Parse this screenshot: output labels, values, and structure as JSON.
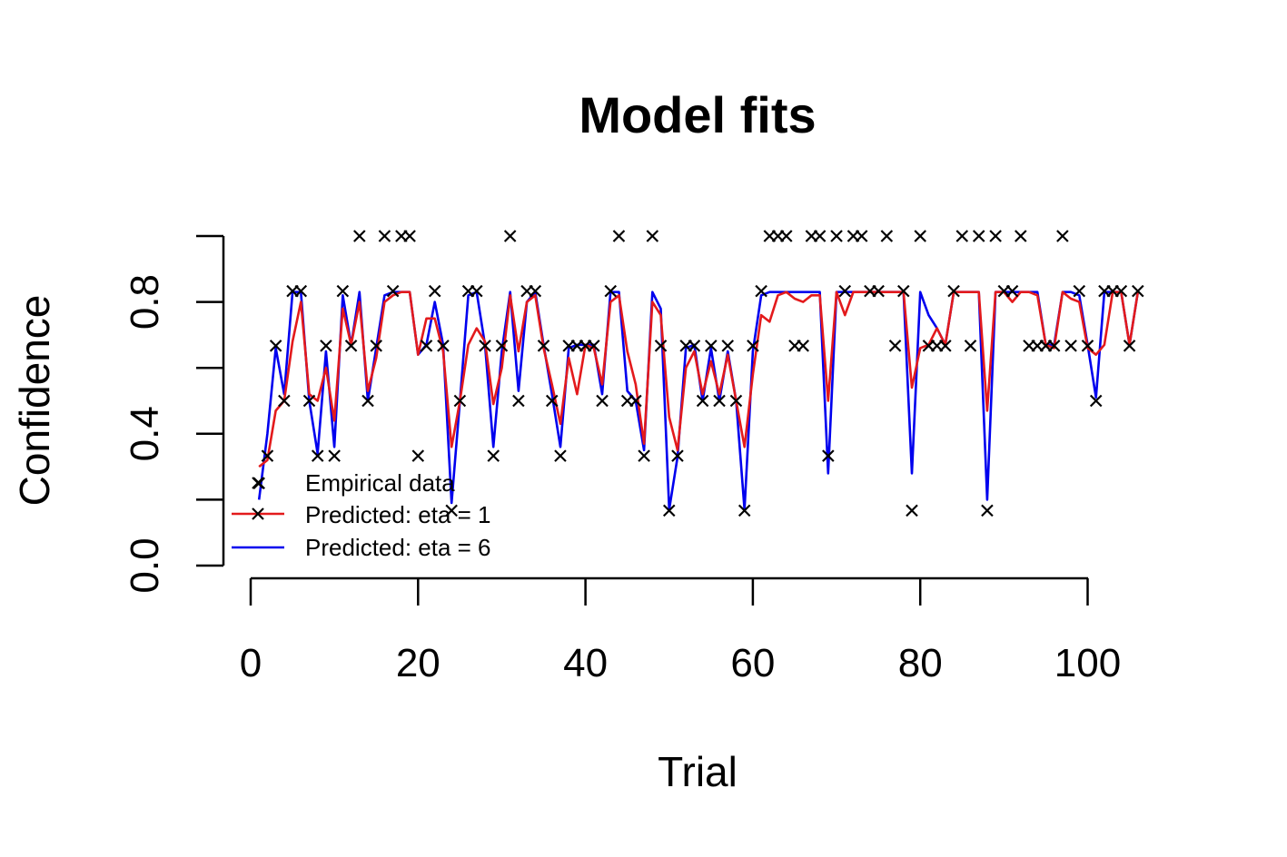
{
  "chart_data": {
    "type": "line",
    "title": "Model fits",
    "xlabel": "Trial",
    "ylabel": "Confidence",
    "xlim": [
      0,
      105
    ],
    "ylim": [
      0,
      1
    ],
    "x_ticks": [
      "0",
      "20",
      "40",
      "60",
      "80",
      "100"
    ],
    "y_ticks": [
      "0.0",
      "0.4",
      "0.8"
    ],
    "grid": false,
    "legend_position": "bottom-left",
    "legend": [
      {
        "label": "Empirical data",
        "kind": "points",
        "color": "#000000"
      },
      {
        "label": "Predicted: eta = 1",
        "kind": "line",
        "color": "#e31a1c"
      },
      {
        "label": "Predicted: eta = 6",
        "kind": "line",
        "color": "#0000ee"
      }
    ],
    "x": [
      1,
      2,
      3,
      4,
      5,
      6,
      7,
      8,
      9,
      10,
      11,
      12,
      13,
      14,
      15,
      16,
      17,
      18,
      19,
      20,
      21,
      22,
      23,
      24,
      25,
      26,
      27,
      28,
      29,
      30,
      31,
      32,
      33,
      34,
      35,
      36,
      37,
      38,
      39,
      40,
      41,
      42,
      43,
      44,
      45,
      46,
      47,
      48,
      49,
      50,
      51,
      52,
      53,
      54,
      55,
      56,
      57,
      58,
      59,
      60,
      61,
      62,
      63,
      64,
      65,
      66,
      67,
      68,
      69,
      70,
      71,
      72,
      73,
      74,
      75,
      76,
      77,
      78,
      79,
      80,
      81,
      82,
      83,
      84,
      85,
      86,
      87,
      88,
      89,
      90,
      91,
      92,
      93,
      94,
      95,
      96,
      97,
      98,
      99,
      100,
      101,
      102,
      103,
      104,
      105,
      106
    ],
    "series": [
      {
        "name": "Empirical data",
        "color": "#000000",
        "marker": "x",
        "values": [
          0.25,
          0.333,
          0.667,
          0.5,
          0.833,
          0.833,
          0.5,
          0.333,
          0.667,
          0.333,
          0.833,
          0.667,
          1.0,
          0.5,
          0.667,
          1.0,
          0.833,
          1.0,
          1.0,
          0.333,
          0.667,
          0.833,
          0.667,
          0.167,
          0.5,
          0.833,
          0.833,
          0.667,
          0.333,
          0.667,
          1.0,
          0.5,
          0.833,
          0.833,
          0.667,
          0.5,
          0.333,
          0.667,
          0.667,
          0.667,
          0.667,
          0.5,
          0.833,
          1.0,
          0.5,
          0.5,
          0.333,
          1.0,
          0.667,
          0.167,
          0.333,
          0.667,
          0.667,
          0.5,
          0.667,
          0.5,
          0.667,
          0.5,
          0.167,
          0.667,
          0.833,
          1.0,
          1.0,
          1.0,
          0.667,
          0.667,
          1.0,
          1.0,
          0.333,
          1.0,
          0.833,
          1.0,
          1.0,
          0.833,
          0.833,
          1.0,
          0.667,
          0.833,
          0.167,
          1.0,
          0.667,
          0.667,
          0.667,
          0.833,
          1.0,
          0.667,
          1.0,
          0.167,
          1.0,
          0.833,
          0.833,
          1.0,
          0.667,
          0.667,
          0.667,
          0.667,
          1.0,
          0.667,
          0.833,
          0.667,
          0.5,
          0.833,
          0.833,
          0.833,
          0.667,
          0.833
        ]
      },
      {
        "name": "Predicted: eta = 1",
        "color": "#e31a1c",
        "values": [
          0.3,
          0.32,
          0.47,
          0.5,
          0.68,
          0.8,
          0.52,
          0.5,
          0.6,
          0.44,
          0.78,
          0.67,
          0.8,
          0.53,
          0.63,
          0.8,
          0.82,
          0.83,
          0.83,
          0.64,
          0.75,
          0.75,
          0.65,
          0.36,
          0.5,
          0.67,
          0.72,
          0.68,
          0.49,
          0.6,
          0.82,
          0.65,
          0.8,
          0.82,
          0.66,
          0.55,
          0.43,
          0.63,
          0.52,
          0.67,
          0.66,
          0.55,
          0.8,
          0.82,
          0.65,
          0.55,
          0.37,
          0.8,
          0.76,
          0.45,
          0.35,
          0.6,
          0.65,
          0.52,
          0.62,
          0.52,
          0.64,
          0.5,
          0.36,
          0.58,
          0.76,
          0.74,
          0.82,
          0.83,
          0.81,
          0.8,
          0.82,
          0.82,
          0.5,
          0.83,
          0.76,
          0.83,
          0.83,
          0.83,
          0.83,
          0.83,
          0.83,
          0.83,
          0.54,
          0.66,
          0.67,
          0.72,
          0.67,
          0.83,
          0.83,
          0.83,
          0.83,
          0.47,
          0.83,
          0.83,
          0.8,
          0.83,
          0.83,
          0.82,
          0.67,
          0.66,
          0.83,
          0.81,
          0.8,
          0.66,
          0.64,
          0.67,
          0.83,
          0.83,
          0.67,
          0.83
        ]
      },
      {
        "name": "Predicted: eta = 6",
        "color": "#0000ee",
        "values": [
          0.2,
          0.4,
          0.66,
          0.52,
          0.83,
          0.83,
          0.5,
          0.34,
          0.65,
          0.36,
          0.82,
          0.67,
          0.83,
          0.5,
          0.66,
          0.82,
          0.83,
          0.83,
          0.83,
          0.64,
          0.67,
          0.8,
          0.67,
          0.19,
          0.5,
          0.82,
          0.83,
          0.67,
          0.36,
          0.65,
          0.83,
          0.53,
          0.8,
          0.83,
          0.67,
          0.52,
          0.36,
          0.66,
          0.67,
          0.67,
          0.67,
          0.52,
          0.83,
          0.83,
          0.53,
          0.5,
          0.35,
          0.83,
          0.78,
          0.17,
          0.33,
          0.66,
          0.67,
          0.5,
          0.66,
          0.5,
          0.65,
          0.5,
          0.17,
          0.65,
          0.82,
          0.83,
          0.83,
          0.83,
          0.83,
          0.83,
          0.83,
          0.83,
          0.28,
          0.83,
          0.83,
          0.83,
          0.83,
          0.83,
          0.83,
          0.83,
          0.83,
          0.83,
          0.28,
          0.83,
          0.76,
          0.72,
          0.67,
          0.83,
          0.83,
          0.83,
          0.83,
          0.2,
          0.83,
          0.83,
          0.83,
          0.83,
          0.83,
          0.83,
          0.67,
          0.67,
          0.83,
          0.83,
          0.82,
          0.67,
          0.51,
          0.83,
          0.83,
          0.83,
          0.67,
          0.83
        ]
      }
    ]
  }
}
